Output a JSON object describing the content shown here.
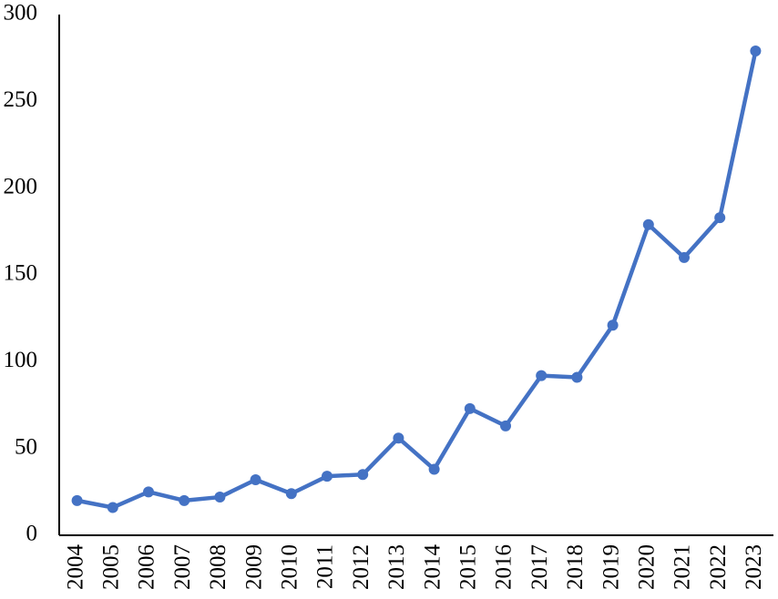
{
  "chart_data": {
    "type": "line",
    "title": "",
    "xlabel": "",
    "ylabel": "",
    "categories": [
      "2004",
      "2005",
      "2006",
      "2007",
      "2008",
      "2009",
      "2010",
      "2011",
      "2012",
      "2013",
      "2014",
      "2015",
      "2016",
      "2017",
      "2018",
      "2019",
      "2020",
      "2021",
      "2022",
      "2023"
    ],
    "series": [
      {
        "values": [
          20,
          16,
          25,
          20,
          22,
          32,
          24,
          34,
          35,
          56,
          38,
          73,
          63,
          92,
          91,
          121,
          179,
          160,
          183,
          279
        ],
        "color": "#4472C4"
      }
    ],
    "ylim": [
      0,
      300
    ],
    "yticks": [
      0,
      50,
      100,
      150,
      200,
      250,
      300
    ],
    "grid": false,
    "legend": "none",
    "markers": true
  }
}
